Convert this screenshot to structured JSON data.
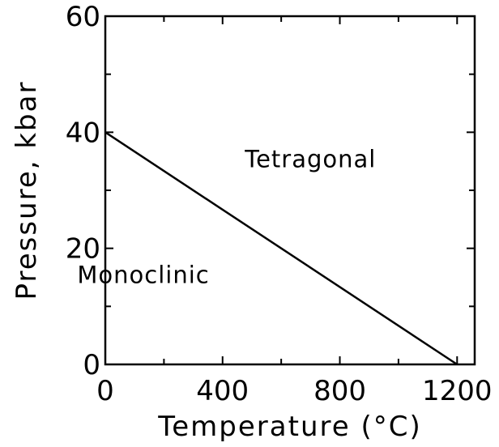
{
  "chart_data": {
    "type": "line",
    "xlabel": "Temperature (°C)",
    "ylabel": "Pressure, kbar",
    "xlim": [
      0,
      1260
    ],
    "ylim": [
      0,
      60
    ],
    "x_ticks": [
      0,
      400,
      800,
      1200
    ],
    "x_tick_labels": [
      "0",
      "400",
      "800",
      "1200"
    ],
    "y_ticks": [
      0,
      20,
      40,
      60
    ],
    "y_tick_labels": [
      "0",
      "20",
      "40",
      "60"
    ],
    "x_minor_ticks": [
      200,
      600,
      1000
    ],
    "y_minor_ticks": [
      10,
      30,
      50
    ],
    "grid": false,
    "series": [
      {
        "x": [
          0,
          1200
        ],
        "y": [
          40,
          0
        ],
        "color": "#000000"
      }
    ],
    "annotations": [
      {
        "text": "Tetragonal",
        "x": 700,
        "y": 34
      },
      {
        "text": "Monoclinic",
        "x": 130,
        "y": 14
      }
    ]
  }
}
